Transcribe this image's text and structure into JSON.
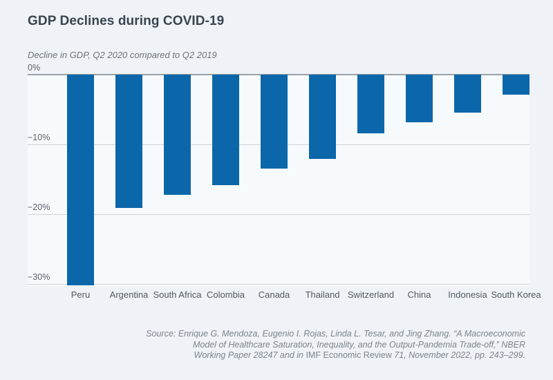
{
  "figure": {
    "title": "GDP Declines during COVID-19",
    "subtitle": "Decline in GDP, Q2 2020 compared to Q2 2019"
  },
  "source": {
    "lines": [
      [
        {
          "text": "Source: Enrique G. Mendoza, Eugenio I. Rojas, Linda L. Tesar, and Jing Zhang. “A Macroeconomic",
          "italic": true
        }
      ],
      [
        {
          "text": "Model of Healthcare Saturation, Inequality, and the Output-Pandemia Trade-off,” NBER",
          "italic": true
        }
      ],
      [
        {
          "text": "Working Paper 28247 and in ",
          "italic": true
        },
        {
          "text": "IMF Economic Review",
          "italic": false
        },
        {
          "text": " 71, November 2022, pp. 243–299.",
          "italic": true
        }
      ]
    ]
  },
  "chart_data": {
    "type": "bar",
    "orientation": "vertical",
    "title": "GDP Declines during COVID-19",
    "subtitle": "Decline in GDP, Q2 2020 compared to Q2 2019",
    "xlabel": "",
    "ylabel": "",
    "unit": "%",
    "categories": [
      "Peru",
      "Argentina",
      "South Africa",
      "Colombia",
      "Canada",
      "Thailand",
      "Switzerland",
      "China",
      "Indonesia",
      "South Korea"
    ],
    "values": [
      -30.2,
      -19.1,
      -17.2,
      -15.8,
      -13.5,
      -12.1,
      -8.4,
      -6.8,
      -5.4,
      -2.9
    ],
    "ylim": [
      -30.3,
      0
    ],
    "yticks": [
      {
        "value": 0,
        "label": "0%"
      },
      {
        "value": -10,
        "label": "−10%"
      },
      {
        "value": -20,
        "label": "−20%"
      },
      {
        "value": -30,
        "label": "−30%"
      }
    ],
    "grid": true,
    "legend": false,
    "colors": {
      "bar": "#0c67aa",
      "zero_line": "#9aa2a9",
      "gridline": "#ccd3d9",
      "page_bg": "#eff3f7",
      "plot_bg": "#f7fafc",
      "title_text": "#3a444e",
      "subtitle_text": "#6b737b",
      "tick_text": "#58606a",
      "category_text": "#4f5860",
      "source_text": "#7b838b"
    }
  }
}
